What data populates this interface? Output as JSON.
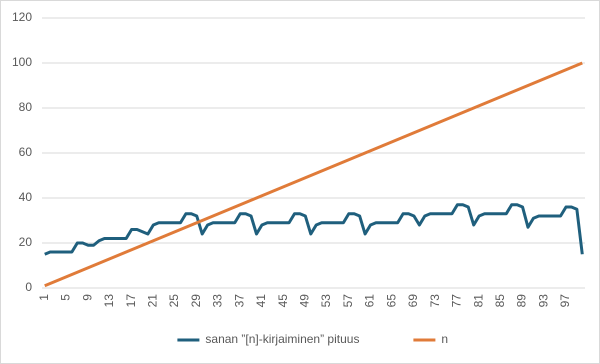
{
  "chart_data": {
    "type": "line",
    "categories": [
      1,
      null,
      null,
      null,
      5,
      null,
      null,
      null,
      9,
      null,
      null,
      null,
      13,
      null,
      null,
      null,
      17,
      null,
      null,
      null,
      21,
      null,
      null,
      null,
      25,
      null,
      null,
      null,
      29,
      null,
      null,
      null,
      33,
      null,
      null,
      null,
      37,
      null,
      null,
      null,
      41,
      null,
      null,
      null,
      45,
      null,
      null,
      null,
      49,
      null,
      null,
      null,
      53,
      null,
      null,
      null,
      57,
      null,
      null,
      null,
      61,
      null,
      null,
      null,
      65,
      null,
      null,
      null,
      69,
      null,
      null,
      null,
      73,
      null,
      null,
      null,
      77,
      null,
      null,
      null,
      81,
      null,
      null,
      null,
      85,
      null,
      null,
      null,
      89,
      null,
      null,
      null,
      93,
      null,
      null,
      null,
      97,
      null,
      null,
      null
    ],
    "series": [
      {
        "name": "sanan ”[n]-kirjaiminen” pituus",
        "color": "#1f5f7d",
        "values": [
          15,
          16,
          16,
          16,
          16,
          16,
          20,
          20,
          19,
          19,
          21,
          22,
          22,
          22,
          22,
          22,
          26,
          26,
          25,
          24,
          28,
          29,
          29,
          29,
          29,
          29,
          33,
          33,
          32,
          24,
          28,
          29,
          29,
          29,
          29,
          29,
          33,
          33,
          32,
          24,
          28,
          29,
          29,
          29,
          29,
          29,
          33,
          33,
          32,
          24,
          28,
          29,
          29,
          29,
          29,
          29,
          33,
          33,
          32,
          24,
          28,
          29,
          29,
          29,
          29,
          29,
          33,
          33,
          32,
          28,
          32,
          33,
          33,
          33,
          33,
          33,
          37,
          37,
          36,
          28,
          32,
          33,
          33,
          33,
          33,
          33,
          37,
          37,
          36,
          27,
          31,
          32,
          32,
          32,
          32,
          32,
          36,
          36,
          35,
          15
        ]
      },
      {
        "name": "n",
        "color": "#e07b39",
        "values": [
          1,
          2,
          3,
          4,
          5,
          6,
          7,
          8,
          9,
          10,
          11,
          12,
          13,
          14,
          15,
          16,
          17,
          18,
          19,
          20,
          21,
          22,
          23,
          24,
          25,
          26,
          27,
          28,
          29,
          30,
          31,
          32,
          33,
          34,
          35,
          36,
          37,
          38,
          39,
          40,
          41,
          42,
          43,
          44,
          45,
          46,
          47,
          48,
          49,
          50,
          51,
          52,
          53,
          54,
          55,
          56,
          57,
          58,
          59,
          60,
          61,
          62,
          63,
          64,
          65,
          66,
          67,
          68,
          69,
          70,
          71,
          72,
          73,
          74,
          75,
          76,
          77,
          78,
          79,
          80,
          81,
          82,
          83,
          84,
          85,
          86,
          87,
          88,
          89,
          90,
          91,
          92,
          93,
          94,
          95,
          96,
          97,
          98,
          99,
          100
        ]
      }
    ],
    "ylim": [
      0,
      120
    ],
    "yticks": [
      0,
      20,
      40,
      60,
      80,
      100,
      120
    ],
    "grid": true,
    "legend": "bottom"
  }
}
